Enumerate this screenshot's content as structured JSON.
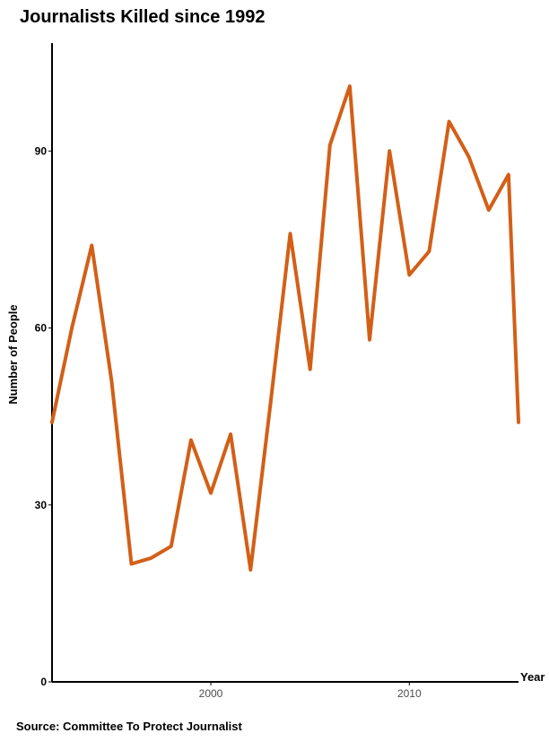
{
  "chart_data": {
    "type": "line",
    "title": "Journalists Killed since 1992",
    "xlabel": "Year",
    "ylabel": "Number of People",
    "source": "Source: Committee To Protect Journalist",
    "xlim": [
      1992,
      2015.5
    ],
    "ylim": [
      0,
      108
    ],
    "x_ticks": [
      2000,
      2010
    ],
    "y_ticks": [
      0,
      30,
      60,
      90
    ],
    "grid": false,
    "line_color": "#D35F17",
    "series": [
      {
        "x": [
          1992,
          1993,
          1994,
          1995,
          1996,
          1997,
          1998,
          1999,
          2000,
          2001,
          2002,
          2003,
          2004,
          2005,
          2006,
          2007,
          2008,
          2009,
          2010,
          2011,
          2012,
          2013,
          2014,
          2015
        ],
        "y": [
          44,
          60,
          74,
          51,
          20,
          21,
          23,
          41,
          32,
          42,
          19,
          47,
          76,
          53,
          91,
          101,
          58,
          90,
          69,
          73,
          95,
          89,
          80,
          86
        ]
      }
    ],
    "final_point": {
      "x": 2015.5,
      "y": 44
    }
  }
}
